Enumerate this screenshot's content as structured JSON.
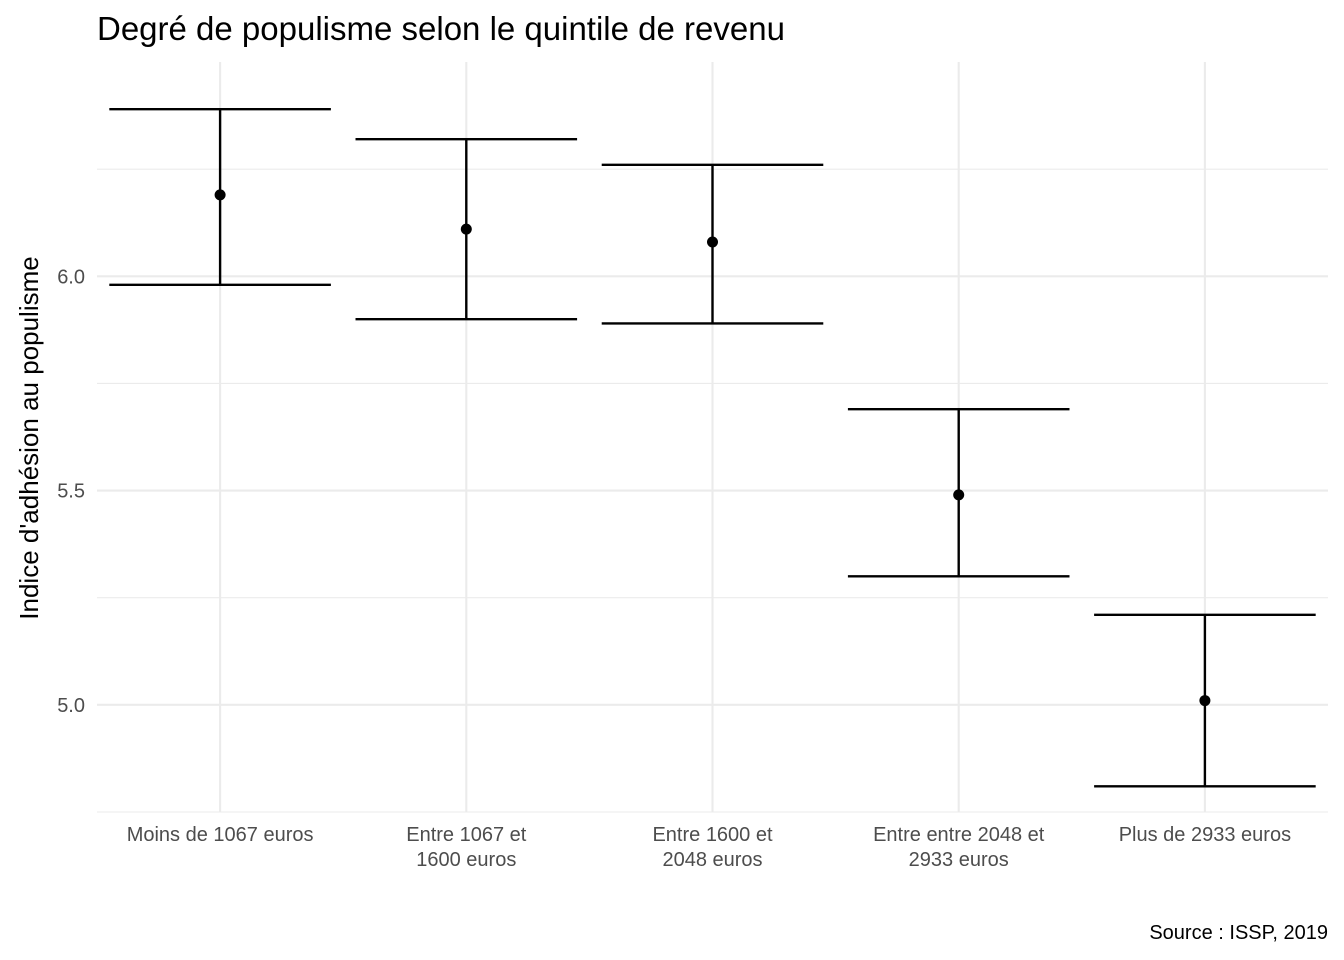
{
  "chart_data": {
    "type": "errorbar",
    "title": "Degré de populisme selon le quintile de revenu",
    "xlabel": "",
    "ylabel": "Indice d'adhésion au populisme",
    "caption": "Source : ISSP, 2019",
    "categories": [
      [
        "Moins de 1067 euros"
      ],
      [
        "Entre 1067 et",
        "1600 euros"
      ],
      [
        "Entre 1600 et",
        "2048 euros"
      ],
      [
        "Entre entre 2048 et",
        "2933 euros"
      ],
      [
        "Plus de 2933 euros"
      ]
    ],
    "values": [
      6.19,
      6.11,
      6.08,
      5.49,
      5.01
    ],
    "lower": [
      5.98,
      5.9,
      5.89,
      5.3,
      4.81
    ],
    "upper": [
      6.39,
      6.32,
      6.26,
      5.69,
      5.21
    ],
    "ylim": [
      4.75,
      6.5
    ],
    "yticks": [
      5.0,
      5.5,
      6.0
    ],
    "ytick_labels": [
      "5.0",
      "5.5",
      "6.0"
    ],
    "grid": true,
    "legend": "none"
  }
}
